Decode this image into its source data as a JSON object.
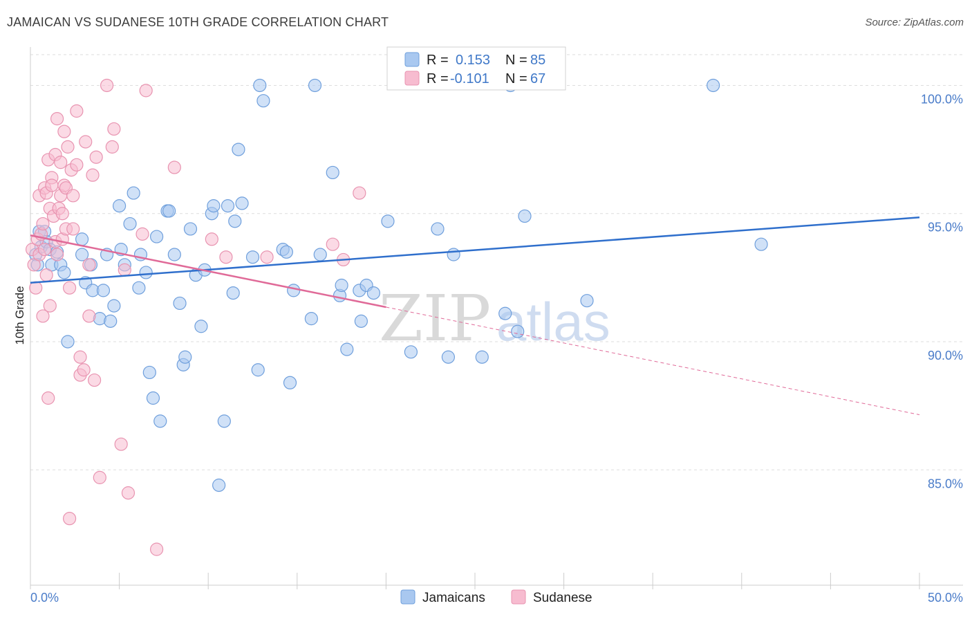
{
  "title": "JAMAICAN VS SUDANESE 10TH GRADE CORRELATION CHART",
  "source": "Source: ZipAtlas.com",
  "watermark": {
    "part1": "ZIP",
    "part2": "atlas"
  },
  "colors": {
    "blue_fill": "#a9c8f0",
    "blue_stroke": "#6f9fdc",
    "blue_line": "#2f6fcc",
    "pink_fill": "#f7bcd0",
    "pink_stroke": "#e893b0",
    "pink_line": "#e06a98",
    "grid": "#dddddd",
    "tick_label": "#4a7cc9"
  },
  "legend": {
    "rows": [
      {
        "r_label": "R =",
        "r_value": "0.153",
        "n_label": "N =",
        "n_value": "85"
      },
      {
        "r_label": "R =",
        "r_value": "-0.101",
        "n_label": "N =",
        "n_value": "67"
      }
    ]
  },
  "bottom_legend": [
    "Jamaicans",
    "Sudanese"
  ],
  "chart_data": {
    "type": "scatter",
    "title": "JAMAICAN VS SUDANESE 10TH GRADE CORRELATION CHART",
    "xlabel": "",
    "ylabel": "10th Grade",
    "xlim": [
      0,
      50
    ],
    "ylim": [
      80.5,
      101.2
    ],
    "x_tick_labels": [
      "0.0%",
      "50.0%"
    ],
    "y_ticks": [
      85,
      90,
      95,
      100
    ],
    "y_tick_labels": [
      "85.0%",
      "90.0%",
      "95.0%",
      "100.0%"
    ],
    "grid": true,
    "legend_position": "top-center",
    "series": [
      {
        "name": "Jamaicans",
        "R": 0.153,
        "N": 85,
        "trend": {
          "x0": 0,
          "y0": 92.3,
          "x1": 50,
          "y1": 94.85
        },
        "points": [
          [
            0.3,
            93.4
          ],
          [
            0.4,
            93.0
          ],
          [
            0.5,
            94.3
          ],
          [
            0.6,
            93.7
          ],
          [
            0.8,
            94.3
          ],
          [
            0.9,
            93.9
          ],
          [
            1.1,
            93.6
          ],
          [
            1.2,
            93.0
          ],
          [
            1.5,
            93.5
          ],
          [
            1.7,
            93.0
          ],
          [
            1.9,
            92.7
          ],
          [
            2.1,
            90.0
          ],
          [
            2.9,
            94.0
          ],
          [
            2.9,
            93.4
          ],
          [
            3.1,
            92.3
          ],
          [
            3.4,
            93.0
          ],
          [
            3.5,
            92.0
          ],
          [
            3.9,
            90.9
          ],
          [
            4.1,
            92.0
          ],
          [
            4.3,
            93.4
          ],
          [
            4.5,
            90.8
          ],
          [
            4.7,
            91.4
          ],
          [
            5.0,
            95.3
          ],
          [
            5.1,
            93.6
          ],
          [
            5.3,
            93.0
          ],
          [
            5.6,
            94.6
          ],
          [
            5.8,
            95.8
          ],
          [
            6.1,
            92.1
          ],
          [
            6.2,
            93.4
          ],
          [
            6.5,
            92.7
          ],
          [
            6.7,
            88.8
          ],
          [
            6.9,
            87.8
          ],
          [
            7.1,
            94.1
          ],
          [
            7.3,
            86.9
          ],
          [
            7.7,
            95.1
          ],
          [
            7.8,
            95.1
          ],
          [
            8.1,
            93.4
          ],
          [
            8.4,
            91.5
          ],
          [
            8.6,
            89.1
          ],
          [
            8.7,
            89.4
          ],
          [
            9.0,
            94.4
          ],
          [
            9.3,
            92.6
          ],
          [
            9.6,
            90.6
          ],
          [
            9.8,
            92.8
          ],
          [
            10.2,
            95.0
          ],
          [
            10.3,
            95.3
          ],
          [
            10.6,
            84.4
          ],
          [
            10.9,
            86.9
          ],
          [
            11.1,
            95.3
          ],
          [
            11.4,
            91.9
          ],
          [
            11.5,
            94.7
          ],
          [
            11.7,
            97.5
          ],
          [
            11.9,
            95.4
          ],
          [
            12.5,
            93.3
          ],
          [
            12.8,
            88.9
          ],
          [
            12.9,
            100.0
          ],
          [
            13.1,
            99.4
          ],
          [
            14.2,
            93.6
          ],
          [
            14.4,
            93.5
          ],
          [
            14.6,
            88.4
          ],
          [
            14.8,
            92.0
          ],
          [
            15.8,
            90.9
          ],
          [
            16.0,
            100.0
          ],
          [
            16.3,
            93.4
          ],
          [
            17.0,
            96.6
          ],
          [
            17.4,
            91.8
          ],
          [
            17.5,
            92.2
          ],
          [
            17.8,
            89.7
          ],
          [
            18.5,
            92.0
          ],
          [
            18.6,
            90.8
          ],
          [
            18.9,
            92.2
          ],
          [
            19.3,
            91.9
          ],
          [
            20.1,
            94.7
          ],
          [
            21.4,
            89.6
          ],
          [
            22.9,
            94.4
          ],
          [
            23.5,
            89.4
          ],
          [
            23.8,
            93.4
          ],
          [
            25.4,
            89.4
          ],
          [
            26.7,
            91.1
          ],
          [
            27.0,
            100.0
          ],
          [
            27.4,
            90.4
          ],
          [
            27.8,
            94.9
          ],
          [
            31.3,
            91.6
          ],
          [
            38.4,
            100.0
          ],
          [
            41.1,
            93.8
          ]
        ]
      },
      {
        "name": "Sudanese",
        "R": -0.101,
        "N": 67,
        "trend": {
          "x0": 0,
          "y0": 94.15,
          "x1": 20,
          "y1": 91.35
        },
        "trend_dashed": {
          "x0": 20,
          "y0": 91.35,
          "x1": 50,
          "y1": 87.15
        },
        "points": [
          [
            0.1,
            93.6
          ],
          [
            0.2,
            93.0
          ],
          [
            0.3,
            92.1
          ],
          [
            0.4,
            94.0
          ],
          [
            0.5,
            93.4
          ],
          [
            0.5,
            95.7
          ],
          [
            0.6,
            94.2
          ],
          [
            0.7,
            91.0
          ],
          [
            0.7,
            94.6
          ],
          [
            0.8,
            96.0
          ],
          [
            0.8,
            93.6
          ],
          [
            0.9,
            95.8
          ],
          [
            0.9,
            92.6
          ],
          [
            1.0,
            97.1
          ],
          [
            1.0,
            87.8
          ],
          [
            1.1,
            91.4
          ],
          [
            1.1,
            95.2
          ],
          [
            1.2,
            96.4
          ],
          [
            1.2,
            96.1
          ],
          [
            1.3,
            94.9
          ],
          [
            1.4,
            97.3
          ],
          [
            1.4,
            93.9
          ],
          [
            1.5,
            93.4
          ],
          [
            1.5,
            98.7
          ],
          [
            1.6,
            95.2
          ],
          [
            1.7,
            95.7
          ],
          [
            1.7,
            97.0
          ],
          [
            1.8,
            94.0
          ],
          [
            1.8,
            95.0
          ],
          [
            1.9,
            98.2
          ],
          [
            1.9,
            96.1
          ],
          [
            2.0,
            94.4
          ],
          [
            2.0,
            96.0
          ],
          [
            2.1,
            97.6
          ],
          [
            2.2,
            92.1
          ],
          [
            2.2,
            83.1
          ],
          [
            2.3,
            96.7
          ],
          [
            2.4,
            95.7
          ],
          [
            2.4,
            94.4
          ],
          [
            2.6,
            96.9
          ],
          [
            2.6,
            99.0
          ],
          [
            2.8,
            89.4
          ],
          [
            2.8,
            88.7
          ],
          [
            3.0,
            88.9
          ],
          [
            3.1,
            97.8
          ],
          [
            3.3,
            91.0
          ],
          [
            3.3,
            93.0
          ],
          [
            3.5,
            96.5
          ],
          [
            3.6,
            88.5
          ],
          [
            3.7,
            97.2
          ],
          [
            3.9,
            84.7
          ],
          [
            4.3,
            100.0
          ],
          [
            4.6,
            97.6
          ],
          [
            4.7,
            98.3
          ],
          [
            5.1,
            86.0
          ],
          [
            5.3,
            92.8
          ],
          [
            5.5,
            84.1
          ],
          [
            6.3,
            94.2
          ],
          [
            6.5,
            99.8
          ],
          [
            7.1,
            81.9
          ],
          [
            8.1,
            96.8
          ],
          [
            10.2,
            94.0
          ],
          [
            11.0,
            93.3
          ],
          [
            13.3,
            93.3
          ],
          [
            17.0,
            93.8
          ],
          [
            17.6,
            93.2
          ],
          [
            18.5,
            95.8
          ]
        ]
      }
    ]
  }
}
